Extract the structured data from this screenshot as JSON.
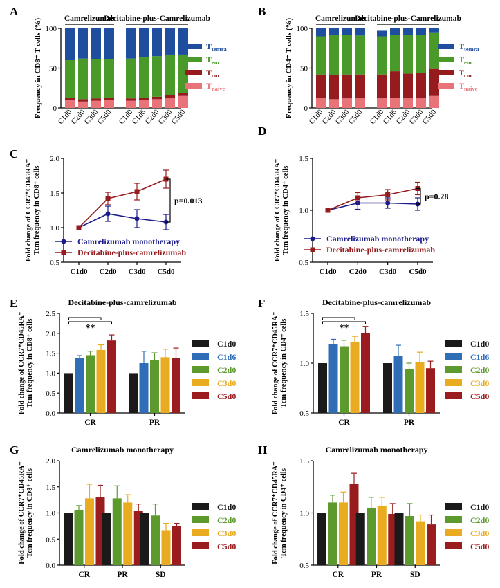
{
  "colors": {
    "temra": "#1f4e9e",
    "tem": "#4a9a2a",
    "tcm": "#951b1e",
    "tnaive": "#e8747a",
    "c1d0": "#1a1a1a",
    "c1d6": "#2f6db6",
    "c2d0": "#5c9a2e",
    "c3d0": "#e9ab1f",
    "c5d0": "#9a1c1f",
    "mono": "#1a1a8c",
    "combo": "#951b1e"
  },
  "chart_data": [
    {
      "panel": "A",
      "type": "bar",
      "stacked": true,
      "ylabel": "Frequency in CD8⁺ T cells (%)",
      "ylim": [
        0,
        100
      ],
      "yticks": [
        0,
        50,
        100
      ],
      "groups": [
        {
          "name": "Camrelizumab",
          "categories": [
            "C1d0",
            "C2d0",
            "C3d0",
            "C5d0"
          ]
        },
        {
          "name": "Decitabine-plus-Camrelizumab",
          "categories": [
            "C1d0",
            "C1d6",
            "C2d0",
            "C3d0",
            "C5d0"
          ]
        }
      ],
      "series": [
        {
          "name": "Tnaive",
          "main": "T",
          "sub": "naive",
          "color_key": "tnaive",
          "values": [
            10,
            8,
            9,
            10,
            9,
            10,
            11,
            12,
            15
          ]
        },
        {
          "name": "Tcm",
          "main": "T",
          "sub": "cm",
          "color_key": "tcm",
          "values": [
            3,
            3,
            3,
            3,
            3,
            3,
            3,
            4,
            4
          ]
        },
        {
          "name": "Tem",
          "main": "T",
          "sub": "em",
          "color_key": "tem",
          "values": [
            47,
            51,
            49,
            48,
            50,
            51,
            51,
            51,
            48
          ]
        },
        {
          "name": "Temra",
          "main": "T",
          "sub": "temra",
          "color_key": "temra",
          "values": [
            40,
            38,
            39,
            39,
            38,
            36,
            35,
            33,
            33
          ]
        }
      ]
    },
    {
      "panel": "B",
      "type": "bar",
      "stacked": true,
      "ylabel": "Frequency in CD4⁺ T cells (%)",
      "ylim": [
        0,
        100
      ],
      "yticks": [
        0,
        50,
        100
      ],
      "groups": [
        {
          "name": "Camrelizumab",
          "categories": [
            "C1d0",
            "C2d0",
            "C3d0",
            "C5d0"
          ]
        },
        {
          "name": "Decitabine-plus-Camrelizumab",
          "categories": [
            "C1d0",
            "C1d6",
            "C2d0",
            "C3d0",
            "C5d0"
          ]
        }
      ],
      "series": [
        {
          "name": "Tnaive",
          "main": "T",
          "sub": "naive",
          "color_key": "tnaive",
          "values": [
            12,
            11,
            12,
            12,
            12,
            13,
            12,
            12,
            15
          ]
        },
        {
          "name": "Tcm",
          "main": "T",
          "sub": "cm",
          "color_key": "tcm",
          "values": [
            30,
            30,
            30,
            30,
            30,
            33,
            31,
            32,
            34
          ]
        },
        {
          "name": "Tem",
          "main": "T",
          "sub": "em",
          "color_key": "tem",
          "values": [
            48,
            51,
            50,
            49,
            48,
            46,
            49,
            48,
            46
          ]
        },
        {
          "name": "Temra",
          "main": "T",
          "sub": "temra",
          "color_key": "temra",
          "values": [
            10,
            8,
            8,
            9,
            7,
            8,
            8,
            8,
            5
          ]
        }
      ]
    },
    {
      "panel": "C",
      "type": "line",
      "ylabel1": "Fold change of CCR7⁺CD45RA⁻",
      "ylabel2": "Tcm frequency in CD8⁺ cells",
      "ylim": [
        0.5,
        2.0
      ],
      "yticks": [
        "0.5",
        "1.0",
        "1.5",
        "2.0"
      ],
      "categories": [
        "C1d0",
        "C2d0",
        "C3d0",
        "C5d0"
      ],
      "series": [
        {
          "name": "Camrelizumab monotherapy",
          "color_key": "mono",
          "marker": "circle",
          "values": [
            1.0,
            1.2,
            1.13,
            1.08
          ],
          "err": [
            0,
            0.11,
            0.13,
            0.11
          ]
        },
        {
          "name": "Decitabine-plus-camrelizumab",
          "color_key": "combo",
          "marker": "square",
          "values": [
            1.0,
            1.42,
            1.52,
            1.7
          ],
          "err": [
            0,
            0.09,
            0.12,
            0.13
          ]
        }
      ],
      "annotation": "p=0.013"
    },
    {
      "panel": "D",
      "type": "line",
      "ylabel1": "Fold change of CCR7⁺CD45RA⁻",
      "ylabel2": "Tcm frequency in CD4⁺ cells",
      "ylim": [
        0.5,
        1.5
      ],
      "yticks": [
        "0.5",
        "1.0",
        "1.5"
      ],
      "categories": [
        "C1d0",
        "C2d0",
        "C3d0",
        "C5d0"
      ],
      "series": [
        {
          "name": "Camrelizumab monotherapy",
          "color_key": "mono",
          "marker": "circle",
          "values": [
            1.0,
            1.07,
            1.07,
            1.06
          ],
          "err": [
            0,
            0.06,
            0.05,
            0.06
          ]
        },
        {
          "name": "Decitabine-plus-camrelizumab",
          "color_key": "combo",
          "marker": "square",
          "values": [
            1.0,
            1.12,
            1.15,
            1.21
          ],
          "err": [
            0,
            0.05,
            0.05,
            0.06
          ]
        }
      ],
      "annotation": "p=0.28"
    },
    {
      "panel": "E",
      "type": "bar",
      "title": "Decitabine-plus-camrelizumab",
      "ylabel1": "Fold change of CCR7⁺CD45RA⁻",
      "ylabel2": "Tcm frequency in CD8⁺ cells",
      "ylim": [
        0,
        2.5
      ],
      "yticks": [
        "0.0",
        "0.5",
        "1.0",
        "1.5",
        "2.0",
        "2.5"
      ],
      "categories": [
        "CR",
        "PR"
      ],
      "series": [
        {
          "name": "C1d0",
          "color_key": "c1d0",
          "values": [
            1.0,
            1.0
          ],
          "err": [
            0,
            0
          ]
        },
        {
          "name": "C1d6",
          "color_key": "c1d6",
          "values": [
            1.38,
            1.25
          ],
          "err": [
            0.06,
            0.3
          ]
        },
        {
          "name": "C2d0",
          "color_key": "c2d0",
          "values": [
            1.45,
            1.33
          ],
          "err": [
            0.1,
            0.18
          ]
        },
        {
          "name": "C3d0",
          "color_key": "c3d0",
          "values": [
            1.58,
            1.4
          ],
          "err": [
            0.13,
            0.2
          ]
        },
        {
          "name": "C5d0",
          "color_key": "c5d0",
          "values": [
            1.82,
            1.38
          ],
          "err": [
            0.14,
            0.25
          ]
        }
      ],
      "annotation": "**"
    },
    {
      "panel": "F",
      "type": "bar",
      "title": "Decitabine-plus-camrelizumab",
      "ylabel1": "Fold change of CCR7⁺CD45RA⁻",
      "ylabel2": "Tcm frequency in CD4⁺ cells",
      "ylim": [
        0.5,
        1.5
      ],
      "yticks": [
        "0.5",
        "1.0",
        "1.5"
      ],
      "categories": [
        "CR",
        "PR"
      ],
      "series": [
        {
          "name": "C1d0",
          "color_key": "c1d0",
          "values": [
            1.0,
            1.0
          ],
          "err": [
            0,
            0
          ]
        },
        {
          "name": "C1d6",
          "color_key": "c1d6",
          "values": [
            1.19,
            1.07
          ],
          "err": [
            0.05,
            0.11
          ]
        },
        {
          "name": "C2d0",
          "color_key": "c2d0",
          "values": [
            1.17,
            0.94
          ],
          "err": [
            0.06,
            0.06
          ]
        },
        {
          "name": "C3d0",
          "color_key": "c3d0",
          "values": [
            1.21,
            1.01
          ],
          "err": [
            0.06,
            0.1
          ]
        },
        {
          "name": "C5d0",
          "color_key": "c5d0",
          "values": [
            1.3,
            0.95
          ],
          "err": [
            0.07,
            0.07
          ]
        }
      ],
      "annotation": "**"
    },
    {
      "panel": "G",
      "type": "bar",
      "title": "Camrelizumab monotherapy",
      "ylabel1": "Fold change of CCR7⁺CD45RA⁻",
      "ylabel2": "Tcm frequency in CD8⁺ cells",
      "ylim": [
        0,
        2.0
      ],
      "yticks": [
        "0.0",
        "0.5",
        "1.0",
        "1.5",
        "2.0"
      ],
      "categories": [
        "CR",
        "PR",
        "SD"
      ],
      "series": [
        {
          "name": "C1d0",
          "color_key": "c1d0",
          "values": [
            1.0,
            1.0,
            1.0
          ],
          "err": [
            0,
            0,
            0
          ]
        },
        {
          "name": "C2d0",
          "color_key": "c2d0",
          "values": [
            1.06,
            1.28,
            0.95
          ],
          "err": [
            0.08,
            0.24,
            0.22
          ]
        },
        {
          "name": "C3d0",
          "color_key": "c3d0",
          "values": [
            1.28,
            1.2,
            0.67
          ],
          "err": [
            0.27,
            0.15,
            0.13
          ]
        },
        {
          "name": "C5d0",
          "color_key": "c5d0",
          "values": [
            1.3,
            1.04,
            0.75
          ],
          "err": [
            0.23,
            0.13,
            0.05
          ]
        }
      ]
    },
    {
      "panel": "H",
      "type": "bar",
      "title": "Camrelizumab monotherapy",
      "ylabel1": "Fold change of CCR7⁺CD45RA⁻",
      "ylabel2": "Tcm frequency in CD4⁺ cells",
      "ylim": [
        0.5,
        1.5
      ],
      "yticks": [
        "0.5",
        "1.0",
        "1.5"
      ],
      "categories": [
        "CR",
        "PR",
        "SD"
      ],
      "series": [
        {
          "name": "C1d0",
          "color_key": "c1d0",
          "values": [
            1.0,
            1.0,
            1.0
          ],
          "err": [
            0,
            0,
            0
          ]
        },
        {
          "name": "C2d0",
          "color_key": "c2d0",
          "values": [
            1.1,
            1.05,
            0.97
          ],
          "err": [
            0.07,
            0.1,
            0.12
          ]
        },
        {
          "name": "C3d0",
          "color_key": "c3d0",
          "values": [
            1.1,
            1.07,
            0.92
          ],
          "err": [
            0.1,
            0.08,
            0.06
          ]
        },
        {
          "name": "C5d0",
          "color_key": "c5d0",
          "values": [
            1.28,
            0.99,
            0.89
          ],
          "err": [
            0.1,
            0.1,
            0.09
          ]
        }
      ]
    }
  ]
}
